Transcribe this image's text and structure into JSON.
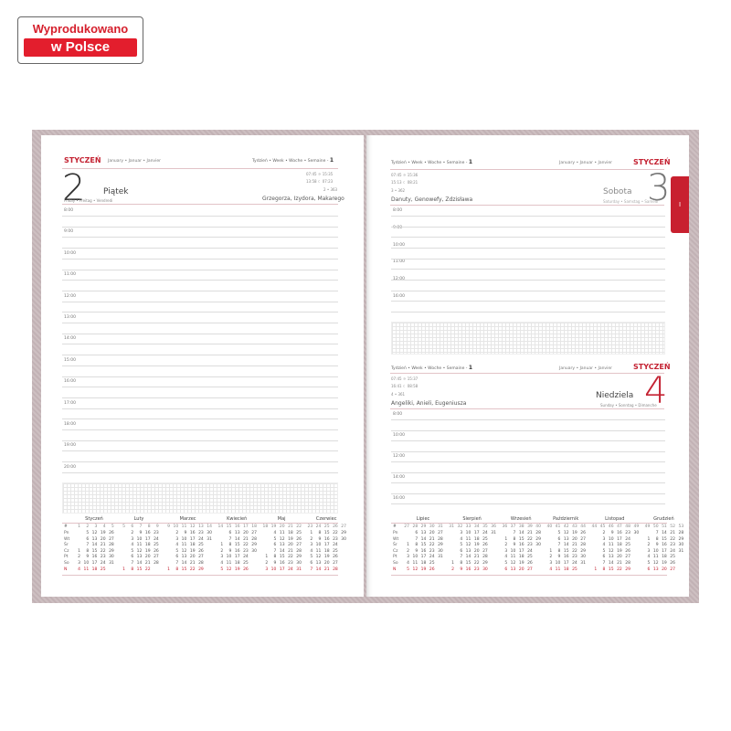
{
  "badge": {
    "line1": "Wyprodukowano",
    "line2": "w Polsce"
  },
  "tab_label": "I",
  "week_label": "Tydzień • Week • Woche • Semaine -",
  "week_number": "1",
  "month_pl": "STYCZEŃ",
  "month_other": "January • Januar • Janvier",
  "days": [
    {
      "number": "2",
      "name": "Piątek",
      "name_other": "Friday • Freitag • Vendredi",
      "sunrise": "07:45",
      "sunset": "15:35",
      "moonrise": "13:58",
      "moonset": "07:23",
      "day_of_year": "2 • 363",
      "namedays": "Grzegorza, Izydora, Makarego",
      "hours": [
        "8:00",
        "9:00",
        "10:00",
        "11:00",
        "12:00",
        "13:00",
        "14:00",
        "15:00",
        "16:00",
        "17:00",
        "18:00",
        "19:00",
        "20:00"
      ]
    },
    {
      "number": "3",
      "name": "Sobota",
      "name_other": "Saturday • Samstag • Samedi",
      "sunrise": "07:45",
      "sunset": "15:36",
      "moonrise": "15:13",
      "moonset": "08:21",
      "day_of_year": "3 • 362",
      "namedays": "Danuty, Genowefy, Zdzisława",
      "hours": [
        "8:00",
        "9:00",
        "10:00",
        "11:00",
        "12:00",
        "16:00"
      ]
    },
    {
      "number": "4",
      "name": "Niedziela",
      "name_other": "Sunday • Sonntag • Dimanche",
      "sunrise": "07:45",
      "sunset": "15:37",
      "moonrise": "16:41",
      "moonset": "08:58",
      "day_of_year": "4 • 361",
      "namedays": "Angeliki, Anieli, Eugeniusza",
      "hours": [
        "8:00",
        "10:00",
        "12:00",
        "14:00",
        "16:00"
      ]
    }
  ],
  "mini_calendar": {
    "weekday_labels": [
      "Pn",
      "Wt",
      "Śr",
      "Cz",
      "Pt",
      "So",
      "N"
    ],
    "week_header": "#",
    "accent": "#c42333",
    "left": [
      {
        "name": "Styczeń",
        "offset": 3,
        "length": 31
      },
      {
        "name": "Luty",
        "offset": 6,
        "length": 28
      },
      {
        "name": "Marzec",
        "offset": 6,
        "length": 31
      },
      {
        "name": "Kwiecień",
        "offset": 2,
        "length": 30
      },
      {
        "name": "Maj",
        "offset": 4,
        "length": 31
      },
      {
        "name": "Czerwiec",
        "offset": 0,
        "length": 30
      }
    ],
    "right": [
      {
        "name": "Lipiec",
        "offset": 2,
        "length": 31
      },
      {
        "name": "Sierpień",
        "offset": 5,
        "length": 31
      },
      {
        "name": "Wrzesień",
        "offset": 1,
        "length": 30
      },
      {
        "name": "Październik",
        "offset": 3,
        "length": 31
      },
      {
        "name": "Listopad",
        "offset": 6,
        "length": 30
      },
      {
        "name": "Grudzień",
        "offset": 1,
        "length": 31
      }
    ]
  }
}
